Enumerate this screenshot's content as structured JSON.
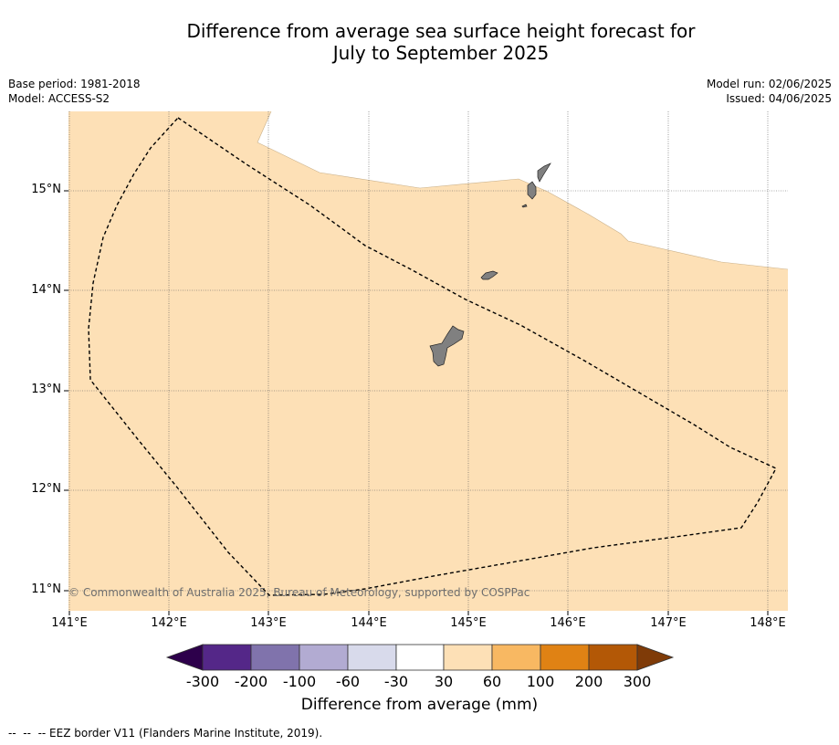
{
  "title": {
    "line1": "Difference from average sea surface height forecast for",
    "line2": "July to September 2025"
  },
  "meta": {
    "base_period": "Base period: 1981-2018",
    "model": "Model: ACCESS-S2",
    "model_run": "Model run: 02/06/2025",
    "issued": "Issued: 04/06/2025"
  },
  "map": {
    "lon_range": [
      141,
      148.2
    ],
    "lat_range": [
      10.8,
      15.8
    ],
    "background_color": "#fde0b6",
    "land_color": "#808080",
    "lat_labels": [
      "15°N",
      "14°N",
      "13°N",
      "12°N",
      "11°N"
    ],
    "lon_labels": [
      "141°E",
      "142°E",
      "143°E",
      "144°E",
      "145°E",
      "146°E",
      "147°E",
      "148°E"
    ],
    "eez_border": "dashed black line"
  },
  "copyright": "© Commonwealth of Australia 2025, Bureau of Meteorology, supported by COSPPac",
  "colorbar": {
    "title": "Difference from average (mm)",
    "ticks": [
      "-300",
      "-200",
      "-100",
      "-60",
      "-30",
      "30",
      "60",
      "100",
      "200",
      "300"
    ],
    "colors": [
      "#2d004b",
      "#542788",
      "#8073ac",
      "#b2abd2",
      "#d8daeb",
      "#ffffff",
      "#fde0b6",
      "#f8b862",
      "#e08214",
      "#b35806",
      "#7f3b08"
    ]
  },
  "footer": "--  --  -- EEZ border V11 (Flanders Marine Institute, 2019)."
}
